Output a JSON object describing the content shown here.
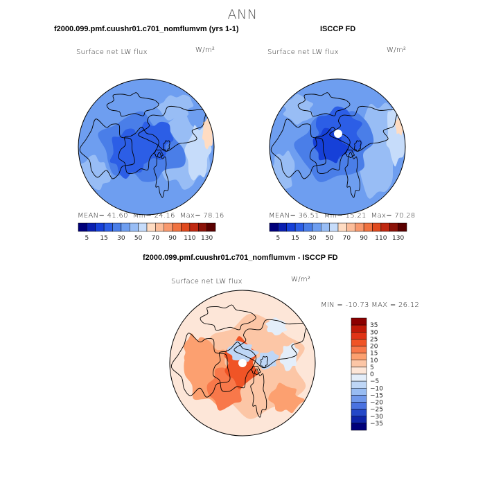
{
  "page": {
    "title": "ANN"
  },
  "colors": {
    "land_outline": "#000000",
    "map_border": "#000000",
    "pole_hole": "#ffffff"
  },
  "chart_data": [
    {
      "type": "heatmap",
      "projection": "north-polar-stereographic",
      "title": "f2000.099.pmf.cuushr01.c701_nomflumvm (yrs 1-1)",
      "field": "Surface net LW flux",
      "units": "W/m²",
      "stats": {
        "mean_label": "MEAN=",
        "mean": "41.60",
        "min_label": "Min=",
        "min": "24.16",
        "max_label": "Max=",
        "max": "78.16"
      },
      "colorbar": {
        "orientation": "horizontal",
        "levels": [
          5,
          10,
          15,
          20,
          30,
          40,
          50,
          60,
          70,
          80,
          90,
          100,
          110,
          120,
          130
        ],
        "tick_labels": [
          "5",
          "15",
          "30",
          "50",
          "70",
          "90",
          "110",
          "130"
        ],
        "colors": [
          "#00007a",
          "#0a1fb0",
          "#1640d8",
          "#2c5ee6",
          "#4a7ee8",
          "#6e9ef0",
          "#98bdf5",
          "#c6dcfa",
          "#ffdcc2",
          "#fcbd9a",
          "#f8996e",
          "#f07240",
          "#e04a1e",
          "#c02810",
          "#8c1208",
          "#5a0000"
        ]
      }
    },
    {
      "type": "heatmap",
      "projection": "north-polar-stereographic",
      "title": "ISCCP FD",
      "field": "Surface net LW flux",
      "units": "W/m²",
      "stats": {
        "mean_label": "MEAN=",
        "mean": "36.51",
        "min_label": "Min=",
        "min": "15.21",
        "max_label": "Max=",
        "max": "70.28"
      },
      "colorbar": {
        "orientation": "horizontal",
        "levels": [
          5,
          10,
          15,
          20,
          30,
          40,
          50,
          60,
          70,
          80,
          90,
          100,
          110,
          120,
          130
        ],
        "tick_labels": [
          "5",
          "15",
          "30",
          "50",
          "70",
          "90",
          "110",
          "130"
        ],
        "colors": [
          "#00007a",
          "#0a1fb0",
          "#1640d8",
          "#2c5ee6",
          "#4a7ee8",
          "#6e9ef0",
          "#98bdf5",
          "#c6dcfa",
          "#ffdcc2",
          "#fcbd9a",
          "#f8996e",
          "#f07240",
          "#e04a1e",
          "#c02810",
          "#8c1208",
          "#5a0000"
        ]
      }
    },
    {
      "type": "heatmap",
      "projection": "north-polar-stereographic",
      "title": "f2000.099.pmf.cuushr01.c701_nomflumvm - ISCCP FD",
      "field": "Surface net LW flux",
      "units": "W/m²",
      "stats": {
        "min_label": "MIN =",
        "min": "-10.73",
        "max_label": "MAX =",
        "max": "26.12"
      },
      "colorbar": {
        "orientation": "vertical",
        "levels": [
          -35,
          -30,
          -25,
          -20,
          -15,
          -10,
          -5,
          0,
          5,
          10,
          15,
          20,
          25,
          30,
          35
        ],
        "tick_labels": [
          "35",
          "30",
          "25",
          "20",
          "15",
          "10",
          "5",
          "0",
          "−5",
          "−10",
          "−15",
          "−20",
          "−25",
          "−30",
          "−35"
        ],
        "colors": [
          "#8c0000",
          "#c01a08",
          "#e03416",
          "#f05426",
          "#f8784a",
          "#fca070",
          "#fcc6a6",
          "#fde6d8",
          "#e4eefa",
          "#bed6f6",
          "#98bcf2",
          "#7098ea",
          "#4a72e0",
          "#2448c8",
          "#0e24a8",
          "#00007a"
        ]
      }
    }
  ]
}
